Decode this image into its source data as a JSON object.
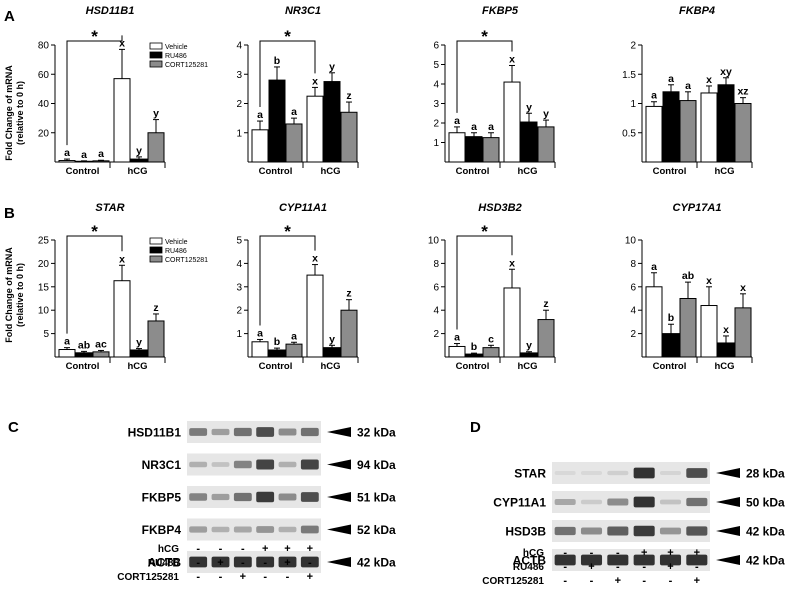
{
  "panel_letters": [
    "A",
    "B",
    "C",
    "D"
  ],
  "groups": [
    "Control",
    "hCG"
  ],
  "legend_labels": [
    "Vehicle",
    "RU486",
    "CORT125281"
  ],
  "y_axis_label": [
    "Fold Change of mRNA",
    "(relative to 0 h)"
  ],
  "colors": {
    "vehicle": "#ffffff",
    "ru486": "#000000",
    "cort125281": "#8c8c8c",
    "outline": "#000000"
  },
  "chart_data": [
    {
      "type": "bar",
      "panel": "A",
      "title": "HSD11B1",
      "categories": [
        "Control",
        "hCG"
      ],
      "series": [
        {
          "name": "Vehicle",
          "values": [
            1,
            57
          ]
        },
        {
          "name": "RU486",
          "values": [
            0.5,
            2
          ]
        },
        {
          "name": "CORT125281",
          "values": [
            0.8,
            20
          ]
        }
      ],
      "errors": [
        [
          1,
          20
        ],
        [
          0.3,
          1.5
        ],
        [
          0.4,
          9
        ]
      ],
      "letters": [
        [
          "a",
          "x"
        ],
        [
          "a",
          "y"
        ],
        [
          "a",
          "y"
        ]
      ],
      "ylim": [
        0,
        80
      ],
      "yticks": [
        20,
        40,
        60,
        80
      ],
      "significance": "*",
      "legend": "top-right"
    },
    {
      "type": "bar",
      "panel": "A",
      "title": "NR3C1",
      "categories": [
        "Control",
        "hCG"
      ],
      "series": [
        {
          "name": "Vehicle",
          "values": [
            1.1,
            2.25
          ]
        },
        {
          "name": "RU486",
          "values": [
            2.8,
            2.75
          ]
        },
        {
          "name": "CORT125281",
          "values": [
            1.3,
            1.7
          ]
        }
      ],
      "errors": [
        [
          0.3,
          0.3
        ],
        [
          0.45,
          0.3
        ],
        [
          0.2,
          0.35
        ]
      ],
      "letters": [
        [
          "a",
          "x"
        ],
        [
          "b",
          "y"
        ],
        [
          "a",
          "z"
        ]
      ],
      "ylim": [
        0,
        4
      ],
      "yticks": [
        1,
        2,
        3,
        4
      ],
      "significance": "*"
    },
    {
      "type": "bar",
      "panel": "A",
      "title": "FKBP5",
      "categories": [
        "Control",
        "hCG"
      ],
      "series": [
        {
          "name": "Vehicle",
          "values": [
            1.5,
            4.1
          ]
        },
        {
          "name": "RU486",
          "values": [
            1.3,
            2.05
          ]
        },
        {
          "name": "CORT125281",
          "values": [
            1.25,
            1.8
          ]
        }
      ],
      "errors": [
        [
          0.3,
          0.85
        ],
        [
          0.2,
          0.45
        ],
        [
          0.25,
          0.35
        ]
      ],
      "letters": [
        [
          "a",
          "x"
        ],
        [
          "a",
          "y"
        ],
        [
          "a",
          "y"
        ]
      ],
      "ylim": [
        0,
        6
      ],
      "yticks": [
        1,
        2,
        3,
        4,
        5,
        6
      ],
      "significance": "*"
    },
    {
      "type": "bar",
      "panel": "A",
      "title": "FKBP4",
      "categories": [
        "Control",
        "hCG"
      ],
      "series": [
        {
          "name": "Vehicle",
          "values": [
            0.95,
            1.18
          ]
        },
        {
          "name": "RU486",
          "values": [
            1.2,
            1.32
          ]
        },
        {
          "name": "CORT125281",
          "values": [
            1.05,
            1.0
          ]
        }
      ],
      "errors": [
        [
          0.08,
          0.12
        ],
        [
          0.12,
          0.12
        ],
        [
          0.15,
          0.1
        ]
      ],
      "letters": [
        [
          "a",
          "x"
        ],
        [
          "a",
          "xy"
        ],
        [
          "a",
          "xz"
        ]
      ],
      "ylim": [
        0,
        2
      ],
      "yticks": [
        0.5,
        1,
        1.5,
        2
      ]
    },
    {
      "type": "bar",
      "panel": "B",
      "title": "STAR",
      "categories": [
        "Control",
        "hCG"
      ],
      "series": [
        {
          "name": "Vehicle",
          "values": [
            1.6,
            16.3
          ]
        },
        {
          "name": "RU486",
          "values": [
            0.9,
            1.5
          ]
        },
        {
          "name": "CORT125281",
          "values": [
            1.1,
            7.7
          ]
        }
      ],
      "errors": [
        [
          0.4,
          3.3
        ],
        [
          0.3,
          0.3
        ],
        [
          0.3,
          1.5
        ]
      ],
      "letters": [
        [
          "a",
          "x"
        ],
        [
          "ab",
          "y"
        ],
        [
          "ac",
          "z"
        ]
      ],
      "ylim": [
        0,
        25
      ],
      "yticks": [
        5,
        10,
        15,
        20,
        25
      ],
      "significance": "*",
      "legend": "top-right"
    },
    {
      "type": "bar",
      "panel": "B",
      "title": "CYP11A1",
      "categories": [
        "Control",
        "hCG"
      ],
      "series": [
        {
          "name": "Vehicle",
          "values": [
            0.65,
            3.5
          ]
        },
        {
          "name": "RU486",
          "values": [
            0.3,
            0.4
          ]
        },
        {
          "name": "CORT125281",
          "values": [
            0.55,
            2.0
          ]
        }
      ],
      "errors": [
        [
          0.1,
          0.45
        ],
        [
          0.08,
          0.1
        ],
        [
          0.08,
          0.45
        ]
      ],
      "letters": [
        [
          "a",
          "x"
        ],
        [
          "b",
          "y"
        ],
        [
          "a",
          "z"
        ]
      ],
      "ylim": [
        0,
        5
      ],
      "yticks": [
        1,
        2,
        3,
        4,
        5
      ],
      "significance": "*"
    },
    {
      "type": "bar",
      "panel": "B",
      "title": "HSD3B2",
      "categories": [
        "Control",
        "hCG"
      ],
      "series": [
        {
          "name": "Vehicle",
          "values": [
            0.9,
            5.9
          ]
        },
        {
          "name": "RU486",
          "values": [
            0.25,
            0.35
          ]
        },
        {
          "name": "CORT125281",
          "values": [
            0.8,
            3.2
          ]
        }
      ],
      "errors": [
        [
          0.25,
          1.6
        ],
        [
          0.08,
          0.1
        ],
        [
          0.2,
          0.8
        ]
      ],
      "letters": [
        [
          "a",
          "x"
        ],
        [
          "b",
          "y"
        ],
        [
          "c",
          "z"
        ]
      ],
      "ylim": [
        0,
        10
      ],
      "yticks": [
        2,
        4,
        6,
        8,
        10
      ],
      "significance": "*"
    },
    {
      "type": "bar",
      "panel": "B",
      "title": "CYP17A1",
      "categories": [
        "Control",
        "hCG"
      ],
      "series": [
        {
          "name": "Vehicle",
          "values": [
            6.0,
            4.4
          ]
        },
        {
          "name": "RU486",
          "values": [
            2.0,
            1.2
          ]
        },
        {
          "name": "CORT125281",
          "values": [
            5.0,
            4.2
          ]
        }
      ],
      "errors": [
        [
          1.2,
          1.6
        ],
        [
          0.8,
          0.6
        ],
        [
          1.4,
          1.2
        ]
      ],
      "letters": [
        [
          "a",
          "x"
        ],
        [
          "b",
          "x"
        ],
        [
          "ab",
          "x"
        ]
      ],
      "ylim": [
        0,
        10
      ],
      "yticks": [
        2,
        4,
        6,
        8,
        10
      ]
    }
  ],
  "blots_c": {
    "proteins": [
      {
        "name": "HSD11B1",
        "size": "32 kDa",
        "intensity": [
          0.55,
          0.35,
          0.6,
          0.8,
          0.45,
          0.6
        ]
      },
      {
        "name": "NR3C1",
        "size": "94 kDa",
        "intensity": [
          0.25,
          0.15,
          0.5,
          0.85,
          0.25,
          0.85
        ]
      },
      {
        "name": "FKBP5",
        "size": "51 kDa",
        "intensity": [
          0.5,
          0.35,
          0.6,
          0.9,
          0.45,
          0.8
        ]
      },
      {
        "name": "FKBP4",
        "size": "52 kDa",
        "intensity": [
          0.35,
          0.25,
          0.3,
          0.4,
          0.25,
          0.55
        ]
      },
      {
        "name": "ACTB",
        "size": "42 kDa",
        "intensity": [
          0.95,
          0.95,
          0.95,
          0.95,
          0.95,
          0.95
        ]
      }
    ],
    "treatments": [
      {
        "label": "hCG",
        "signs": [
          "-",
          "-",
          "-",
          "+",
          "+",
          "+"
        ]
      },
      {
        "label": "RU486",
        "signs": [
          "-",
          "+",
          "-",
          "-",
          "+",
          "-"
        ]
      },
      {
        "label": "CORT125281",
        "signs": [
          "-",
          "-",
          "+",
          "-",
          "-",
          "+"
        ]
      }
    ]
  },
  "blots_d": {
    "proteins": [
      {
        "name": "STAR",
        "size": "28 kDa",
        "intensity": [
          0.03,
          0.03,
          0.08,
          0.95,
          0.05,
          0.8
        ]
      },
      {
        "name": "CYP11A1",
        "size": "50 kDa",
        "intensity": [
          0.3,
          0.1,
          0.45,
          0.95,
          0.15,
          0.6
        ]
      },
      {
        "name": "HSD3B",
        "size": "42 kDa",
        "intensity": [
          0.6,
          0.45,
          0.7,
          0.9,
          0.4,
          0.75
        ]
      },
      {
        "name": "ACTB",
        "size": "42 kDa",
        "intensity": [
          0.95,
          0.95,
          0.95,
          0.95,
          0.95,
          0.95
        ]
      }
    ],
    "treatments": [
      {
        "label": "hCG",
        "signs": [
          "-",
          "-",
          "-",
          "+",
          "+",
          "+"
        ]
      },
      {
        "label": "RU486",
        "signs": [
          "-",
          "+",
          "-",
          "-",
          "+",
          "-"
        ]
      },
      {
        "label": "CORT125281",
        "signs": [
          "-",
          "-",
          "+",
          "-",
          "-",
          "+"
        ]
      }
    ]
  }
}
